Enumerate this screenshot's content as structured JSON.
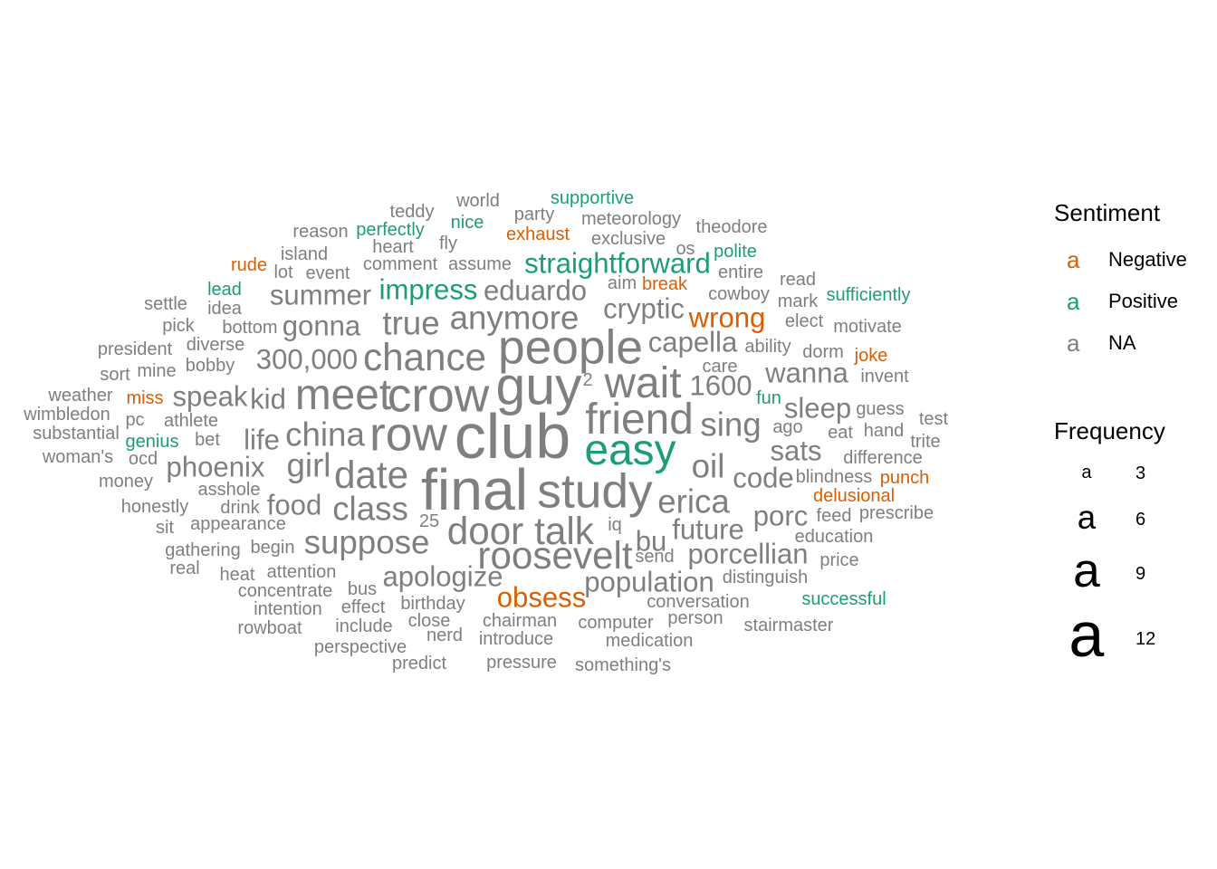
{
  "colors": {
    "Negative": "#D95F02",
    "Positive": "#1B9E77",
    "NA": "#7F7F7F"
  },
  "words": [
    {
      "t": "club",
      "f": 12,
      "s": "NA"
    },
    {
      "t": "final",
      "f": 11,
      "s": "NA"
    },
    {
      "t": "guy",
      "f": 10,
      "s": "NA"
    },
    {
      "t": "row",
      "f": 9,
      "s": "NA"
    },
    {
      "t": "crow",
      "f": 9,
      "s": "NA"
    },
    {
      "t": "people",
      "f": 9,
      "s": "NA"
    },
    {
      "t": "study",
      "f": 9,
      "s": "NA"
    },
    {
      "t": "meet",
      "f": 8,
      "s": "NA"
    },
    {
      "t": "friend",
      "f": 8,
      "s": "NA"
    },
    {
      "t": "easy",
      "f": 8,
      "s": "Positive"
    },
    {
      "t": "wait",
      "f": 8,
      "s": "NA"
    },
    {
      "t": "chance",
      "f": 7,
      "s": "NA"
    },
    {
      "t": "talk",
      "f": 7,
      "s": "NA"
    },
    {
      "t": "door",
      "f": 7,
      "s": "NA"
    },
    {
      "t": "date",
      "f": 7,
      "s": "NA"
    },
    {
      "t": "roosevelt",
      "f": 7,
      "s": "NA"
    },
    {
      "t": "girl",
      "f": 6,
      "s": "NA"
    },
    {
      "t": "china",
      "f": 6,
      "s": "NA"
    },
    {
      "t": "anymore",
      "f": 6,
      "s": "NA"
    },
    {
      "t": "suppose",
      "f": 6,
      "s": "NA"
    },
    {
      "t": "erica",
      "f": 6,
      "s": "NA"
    },
    {
      "t": "sing",
      "f": 6,
      "s": "NA"
    },
    {
      "t": "oil",
      "f": 6,
      "s": "NA"
    },
    {
      "t": "true",
      "f": 6,
      "s": "NA"
    },
    {
      "t": "class",
      "f": 6,
      "s": "NA"
    },
    {
      "t": "eduardo",
      "f": 5,
      "s": "NA"
    },
    {
      "t": "impress",
      "f": 5,
      "s": "Positive"
    },
    {
      "t": "straightforward",
      "f": 5,
      "s": "Positive"
    },
    {
      "t": "cryptic",
      "f": 5,
      "s": "NA"
    },
    {
      "t": "apologize",
      "f": 5,
      "s": "NA"
    },
    {
      "t": "population",
      "f": 5,
      "s": "NA"
    },
    {
      "t": "porcellian",
      "f": 5,
      "s": "NA"
    },
    {
      "t": "300,000",
      "f": 5,
      "s": "NA"
    },
    {
      "t": "1600",
      "f": 5,
      "s": "NA"
    },
    {
      "t": "capella",
      "f": 5,
      "s": "NA"
    },
    {
      "t": "future",
      "f": 5,
      "s": "NA"
    },
    {
      "t": "wrong",
      "f": 5,
      "s": "Negative"
    },
    {
      "t": "obsess",
      "f": 5,
      "s": "Negative"
    },
    {
      "t": "summer",
      "f": 5,
      "s": "NA"
    },
    {
      "t": "gonna",
      "f": 5,
      "s": "NA"
    },
    {
      "t": "phoenix",
      "f": 5,
      "s": "NA"
    },
    {
      "t": "food",
      "f": 5,
      "s": "NA"
    },
    {
      "t": "speak",
      "f": 5,
      "s": "NA"
    },
    {
      "t": "kid",
      "f": 5,
      "s": "NA"
    },
    {
      "t": "life",
      "f": 5,
      "s": "NA"
    },
    {
      "t": "wanna",
      "f": 5,
      "s": "NA"
    },
    {
      "t": "sleep",
      "f": 5,
      "s": "NA"
    },
    {
      "t": "sats",
      "f": 5,
      "s": "NA"
    },
    {
      "t": "code",
      "f": 5,
      "s": "NA"
    },
    {
      "t": "porc",
      "f": 5,
      "s": "NA"
    },
    {
      "t": "bu",
      "f": 5,
      "s": "NA"
    },
    {
      "t": "supportive",
      "f": 3,
      "s": "Positive"
    },
    {
      "t": "world",
      "f": 3,
      "s": "NA"
    },
    {
      "t": "teddy",
      "f": 3,
      "s": "NA"
    },
    {
      "t": "party",
      "f": 3,
      "s": "NA"
    },
    {
      "t": "meteorology",
      "f": 3,
      "s": "NA"
    },
    {
      "t": "theodore",
      "f": 3,
      "s": "NA"
    },
    {
      "t": "reason",
      "f": 3,
      "s": "NA"
    },
    {
      "t": "perfectly",
      "f": 3,
      "s": "Positive"
    },
    {
      "t": "nice",
      "f": 3,
      "s": "Positive"
    },
    {
      "t": "exhaust",
      "f": 3,
      "s": "Negative"
    },
    {
      "t": "exclusive",
      "f": 3,
      "s": "NA"
    },
    {
      "t": "heart",
      "f": 3,
      "s": "NA"
    },
    {
      "t": "fly",
      "f": 3,
      "s": "NA"
    },
    {
      "t": "os",
      "f": 3,
      "s": "NA"
    },
    {
      "t": "polite",
      "f": 3,
      "s": "Positive"
    },
    {
      "t": "island",
      "f": 3,
      "s": "NA"
    },
    {
      "t": "rude",
      "f": 3,
      "s": "Negative"
    },
    {
      "t": "lot",
      "f": 3,
      "s": "NA"
    },
    {
      "t": "event",
      "f": 3,
      "s": "NA"
    },
    {
      "t": "comment",
      "f": 3,
      "s": "NA"
    },
    {
      "t": "assume",
      "f": 3,
      "s": "NA"
    },
    {
      "t": "entire",
      "f": 3,
      "s": "NA"
    },
    {
      "t": "read",
      "f": 3,
      "s": "NA"
    },
    {
      "t": "lead",
      "f": 3,
      "s": "Positive"
    },
    {
      "t": "aim",
      "f": 3,
      "s": "NA"
    },
    {
      "t": "break",
      "f": 3,
      "s": "Negative"
    },
    {
      "t": "cowboy",
      "f": 3,
      "s": "NA"
    },
    {
      "t": "mark",
      "f": 3,
      "s": "NA"
    },
    {
      "t": "sufficiently",
      "f": 3,
      "s": "Positive"
    },
    {
      "t": "settle",
      "f": 3,
      "s": "NA"
    },
    {
      "t": "idea",
      "f": 3,
      "s": "NA"
    },
    {
      "t": "elect",
      "f": 3,
      "s": "NA"
    },
    {
      "t": "motivate",
      "f": 3,
      "s": "NA"
    },
    {
      "t": "pick",
      "f": 3,
      "s": "NA"
    },
    {
      "t": "bottom",
      "f": 3,
      "s": "NA"
    },
    {
      "t": "ability",
      "f": 3,
      "s": "NA"
    },
    {
      "t": "dorm",
      "f": 3,
      "s": "NA"
    },
    {
      "t": "joke",
      "f": 3,
      "s": "Negative"
    },
    {
      "t": "president",
      "f": 3,
      "s": "NA"
    },
    {
      "t": "diverse",
      "f": 3,
      "s": "NA"
    },
    {
      "t": "bobby",
      "f": 3,
      "s": "NA"
    },
    {
      "t": "care",
      "f": 3,
      "s": "NA"
    },
    {
      "t": "invent",
      "f": 3,
      "s": "NA"
    },
    {
      "t": "sort",
      "f": 3,
      "s": "NA"
    },
    {
      "t": "mine",
      "f": 3,
      "s": "NA"
    },
    {
      "t": "2",
      "f": 3,
      "s": "NA"
    },
    {
      "t": "weather",
      "f": 3,
      "s": "NA"
    },
    {
      "t": "miss",
      "f": 3,
      "s": "Negative"
    },
    {
      "t": "fun",
      "f": 3,
      "s": "Positive"
    },
    {
      "t": "guess",
      "f": 3,
      "s": "NA"
    },
    {
      "t": "wimbledon",
      "f": 3,
      "s": "NA"
    },
    {
      "t": "pc",
      "f": 3,
      "s": "NA"
    },
    {
      "t": "athlete",
      "f": 3,
      "s": "NA"
    },
    {
      "t": "ago",
      "f": 3,
      "s": "NA"
    },
    {
      "t": "test",
      "f": 3,
      "s": "NA"
    },
    {
      "t": "substantial",
      "f": 3,
      "s": "NA"
    },
    {
      "t": "eat",
      "f": 3,
      "s": "NA"
    },
    {
      "t": "hand",
      "f": 3,
      "s": "NA"
    },
    {
      "t": "genius",
      "f": 3,
      "s": "Positive"
    },
    {
      "t": "bet",
      "f": 3,
      "s": "NA"
    },
    {
      "t": "trite",
      "f": 3,
      "s": "NA"
    },
    {
      "t": "woman's",
      "f": 3,
      "s": "NA"
    },
    {
      "t": "ocd",
      "f": 3,
      "s": "NA"
    },
    {
      "t": "difference",
      "f": 3,
      "s": "NA"
    },
    {
      "t": "money",
      "f": 3,
      "s": "NA"
    },
    {
      "t": "blindness",
      "f": 3,
      "s": "NA"
    },
    {
      "t": "punch",
      "f": 3,
      "s": "Negative"
    },
    {
      "t": "asshole",
      "f": 3,
      "s": "NA"
    },
    {
      "t": "delusional",
      "f": 3,
      "s": "Negative"
    },
    {
      "t": "honestly",
      "f": 3,
      "s": "NA"
    },
    {
      "t": "drink",
      "f": 3,
      "s": "NA"
    },
    {
      "t": "feed",
      "f": 3,
      "s": "NA"
    },
    {
      "t": "prescribe",
      "f": 3,
      "s": "NA"
    },
    {
      "t": "25",
      "f": 3,
      "s": "NA"
    },
    {
      "t": "sit",
      "f": 3,
      "s": "NA"
    },
    {
      "t": "appearance",
      "f": 3,
      "s": "NA"
    },
    {
      "t": "iq",
      "f": 3,
      "s": "NA"
    },
    {
      "t": "education",
      "f": 3,
      "s": "NA"
    },
    {
      "t": "gathering",
      "f": 3,
      "s": "NA"
    },
    {
      "t": "begin",
      "f": 3,
      "s": "NA"
    },
    {
      "t": "send",
      "f": 3,
      "s": "NA"
    },
    {
      "t": "real",
      "f": 3,
      "s": "NA"
    },
    {
      "t": "price",
      "f": 3,
      "s": "NA"
    },
    {
      "t": "heat",
      "f": 3,
      "s": "NA"
    },
    {
      "t": "attention",
      "f": 3,
      "s": "NA"
    },
    {
      "t": "distinguish",
      "f": 3,
      "s": "NA"
    },
    {
      "t": "concentrate",
      "f": 3,
      "s": "NA"
    },
    {
      "t": "bus",
      "f": 3,
      "s": "NA"
    },
    {
      "t": "successful",
      "f": 3,
      "s": "Positive"
    },
    {
      "t": "birthday",
      "f": 3,
      "s": "NA"
    },
    {
      "t": "conversation",
      "f": 3,
      "s": "NA"
    },
    {
      "t": "intention",
      "f": 3,
      "s": "NA"
    },
    {
      "t": "effect",
      "f": 3,
      "s": "NA"
    },
    {
      "t": "chairman",
      "f": 3,
      "s": "NA"
    },
    {
      "t": "person",
      "f": 3,
      "s": "NA"
    },
    {
      "t": "rowboat",
      "f": 3,
      "s": "NA"
    },
    {
      "t": "include",
      "f": 3,
      "s": "NA"
    },
    {
      "t": "close",
      "f": 3,
      "s": "NA"
    },
    {
      "t": "computer",
      "f": 3,
      "s": "NA"
    },
    {
      "t": "stairmaster",
      "f": 3,
      "s": "NA"
    },
    {
      "t": "nerd",
      "f": 3,
      "s": "NA"
    },
    {
      "t": "introduce",
      "f": 3,
      "s": "NA"
    },
    {
      "t": "medication",
      "f": 3,
      "s": "NA"
    },
    {
      "t": "perspective",
      "f": 3,
      "s": "NA"
    },
    {
      "t": "predict",
      "f": 3,
      "s": "NA"
    },
    {
      "t": "pressure",
      "f": 3,
      "s": "NA"
    },
    {
      "t": "something's",
      "f": 3,
      "s": "NA"
    }
  ],
  "legend": {
    "sentiment_title": "Sentiment",
    "sentiment_items": [
      {
        "key": "a",
        "label": "Negative",
        "s": "Negative"
      },
      {
        "key": "a",
        "label": "Positive",
        "s": "Positive"
      },
      {
        "key": "a",
        "label": "NA",
        "s": "NA"
      }
    ],
    "frequency_title": "Frequency",
    "frequency_items": [
      {
        "key": "a",
        "label": "3",
        "f": 3
      },
      {
        "key": "a",
        "label": "6",
        "f": 6
      },
      {
        "key": "a",
        "label": "9",
        "f": 9
      },
      {
        "key": "a",
        "label": "12",
        "f": 12
      }
    ]
  }
}
